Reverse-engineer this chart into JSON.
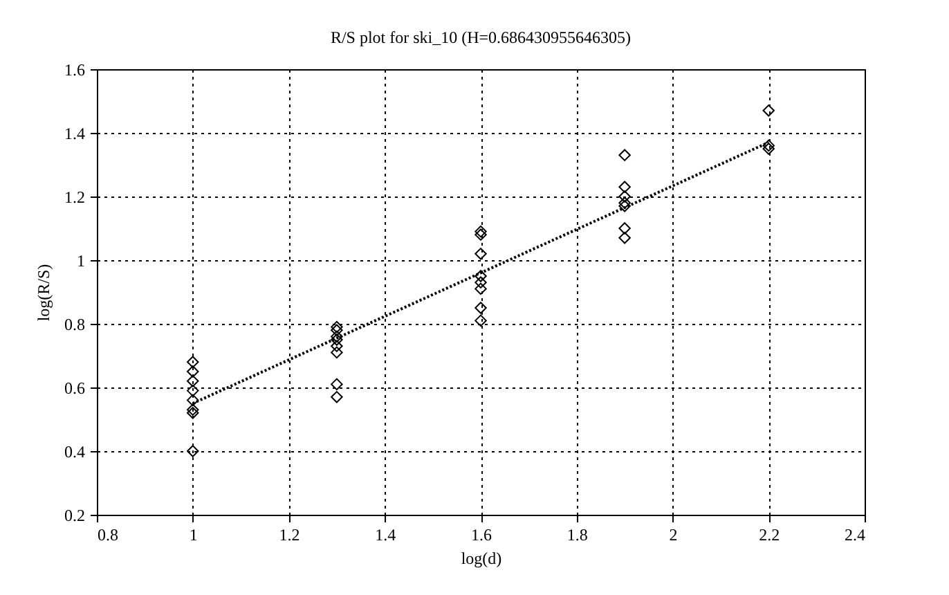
{
  "chart_data": {
    "type": "scatter",
    "title": "R/S plot for ski_10 (H=0.686430955646305)",
    "xlabel": "log(d)",
    "ylabel": "log(R/S)",
    "xlim": [
      0.8,
      2.4
    ],
    "xticks": [
      0.8,
      1,
      1.2,
      1.4,
      1.6,
      1.8,
      2,
      2.2,
      2.4
    ],
    "ylim": [
      0.2,
      1.6
    ],
    "yticks": [
      0.2,
      0.4,
      0.6,
      0.8,
      1,
      1.2,
      1.4,
      1.6
    ],
    "grid": true,
    "series": [
      {
        "color": "#000000",
        "marker": "diamond",
        "x": [
          1,
          1,
          1,
          1,
          1,
          1,
          1,
          1,
          1.3,
          1.3,
          1.3,
          1.3,
          1.3,
          1.3,
          1.3,
          1.3,
          1.6,
          1.6,
          1.6,
          1.6,
          1.6,
          1.6,
          1.6,
          1.6,
          1.9,
          1.9,
          1.9,
          1.9,
          1.9,
          1.9,
          1.9,
          2.2,
          2.2,
          2.2
        ],
        "values": [
          0.68,
          0.65,
          0.62,
          0.59,
          0.56,
          0.53,
          0.52,
          0.4,
          0.79,
          0.78,
          0.76,
          0.75,
          0.73,
          0.71,
          0.61,
          0.57,
          1.09,
          1.08,
          1.02,
          0.95,
          0.93,
          0.91,
          0.85,
          0.81,
          1.33,
          1.23,
          1.2,
          1.18,
          1.17,
          1.1,
          1.07,
          1.47,
          1.36,
          1.35
        ]
      },
      {
        "type": "line",
        "color": "#000000",
        "line_style": "dotted",
        "x": [
          1,
          2.2
        ],
        "values": [
          0.55,
          1.37
        ]
      }
    ]
  }
}
